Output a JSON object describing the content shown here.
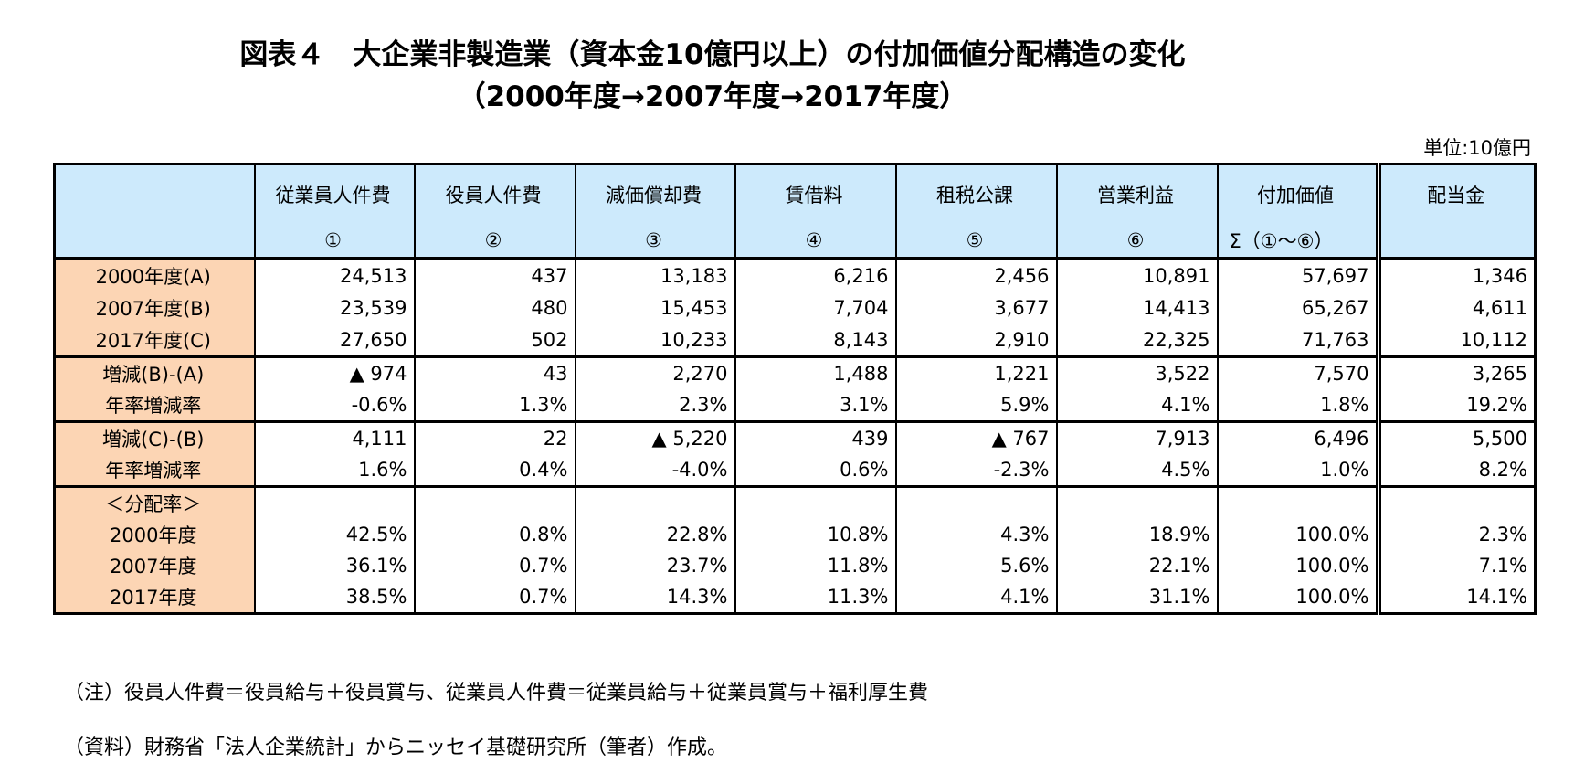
{
  "title_line1": "図表４　大企業非製造業（資本金10億円以上）の付加価値分配構造の変化",
  "title_line2": "（2000年度→2007年度→2017年度）",
  "unit": "単位:10億円",
  "headers": [
    {
      "name": "従業員人件費",
      "num": "①"
    },
    {
      "name": "役員人件費",
      "num": "②"
    },
    {
      "name": "減価償却費",
      "num": "③"
    },
    {
      "name": "賃借料",
      "num": "④"
    },
    {
      "name": "租税公課",
      "num": "⑤"
    },
    {
      "name": "営業利益",
      "num": "⑥"
    },
    {
      "name": "付加価値",
      "num": "Σ（①～⑥）"
    },
    {
      "name": "配当金",
      "num": ""
    }
  ],
  "rows": [
    {
      "label": "2000年度(A)",
      "values": [
        "24,513",
        "437",
        "13,183",
        "6,216",
        "2,456",
        "10,891",
        "57,697",
        "1,346"
      ]
    },
    {
      "label": "2007年度(B)",
      "values": [
        "23,539",
        "480",
        "15,453",
        "7,704",
        "3,677",
        "14,413",
        "65,267",
        "4,611"
      ]
    },
    {
      "label": "2017年度(C)",
      "values": [
        "27,650",
        "502",
        "10,233",
        "8,143",
        "2,910",
        "22,325",
        "71,763",
        "10,112"
      ]
    },
    {
      "label": "増減(B)-(A)",
      "values": [
        "▲ 974",
        "43",
        "2,270",
        "1,488",
        "1,221",
        "3,522",
        "7,570",
        "3,265"
      ]
    },
    {
      "label": "年率増減率",
      "values": [
        "-0.6%",
        "1.3%",
        "2.3%",
        "3.1%",
        "5.9%",
        "4.1%",
        "1.8%",
        "19.2%"
      ]
    },
    {
      "label": "増減(C)-(B)",
      "values": [
        "4,111",
        "22",
        "▲ 5,220",
        "439",
        "▲ 767",
        "7,913",
        "6,496",
        "5,500"
      ]
    },
    {
      "label": "年率増減率",
      "values": [
        "1.6%",
        "0.4%",
        "-4.0%",
        "0.6%",
        "-2.3%",
        "4.5%",
        "1.0%",
        "8.2%"
      ]
    },
    {
      "label": "＜分配率＞",
      "values": [
        "",
        "",
        "",
        "",
        "",
        "",
        "",
        ""
      ]
    },
    {
      "label": "2000年度",
      "values": [
        "42.5%",
        "0.8%",
        "22.8%",
        "10.8%",
        "4.3%",
        "18.9%",
        "100.0%",
        "2.3%"
      ]
    },
    {
      "label": "2007年度",
      "values": [
        "36.1%",
        "0.7%",
        "23.7%",
        "11.8%",
        "5.6%",
        "22.1%",
        "100.0%",
        "7.1%"
      ]
    },
    {
      "label": "2017年度",
      "values": [
        "38.5%",
        "0.7%",
        "14.3%",
        "11.3%",
        "4.1%",
        "31.1%",
        "100.0%",
        "14.1%"
      ]
    }
  ],
  "note1": "（注）役員人件費＝役員給与＋役員賞与、従業員人件費＝従業員給与＋従業員賞与＋福利厚生費",
  "note2": "（資料）財務省「法人企業統計」からニッセイ基礎研究所（筆者）作成。"
}
